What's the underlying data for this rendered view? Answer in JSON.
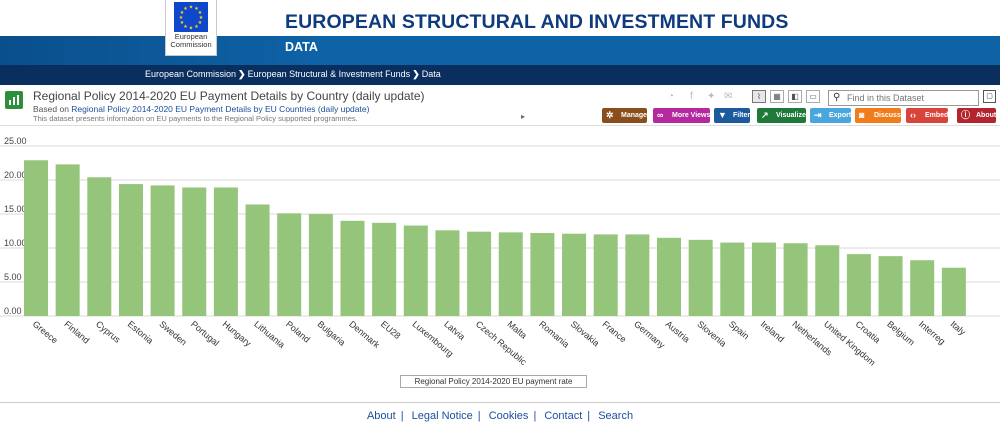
{
  "header": {
    "logo_text_line1": "European",
    "logo_text_line2": "Commission",
    "site_title": "EUROPEAN STRUCTURAL AND INVESTMENT FUNDS",
    "site_subtitle": "DATA",
    "breadcrumbs": [
      "European Commission",
      "European Structural & Investment Funds",
      "Data"
    ]
  },
  "dataset": {
    "title": "Regional Policy 2014-2020 EU Payment Details by Country (daily update)",
    "based_prefix": "Based on",
    "based_link": "Regional Policy 2014-2020 EU Payment Details by EU Countries (daily update)",
    "description": "This dataset presents information on EU payments to the Regional Policy supported programmes.",
    "search_placeholder": "Find in this Dataset",
    "buttons": [
      {
        "label": "Manage",
        "icon": "gear-icon",
        "color": "#8a4e1c"
      },
      {
        "label": "More Views",
        "icon": "binoculars-icon",
        "color": "#b5299f"
      },
      {
        "label": "Filter",
        "icon": "funnel-icon",
        "color": "#1b5a9c"
      },
      {
        "label": "Visualize",
        "icon": "chart-icon",
        "color": "#1f7a3a"
      },
      {
        "label": "Export",
        "icon": "export-icon",
        "color": "#4aa6dc"
      },
      {
        "label": "Discuss",
        "icon": "speech-icon",
        "color": "#f07d1b"
      },
      {
        "label": "Embed",
        "icon": "code-icon",
        "color": "#d9443a"
      },
      {
        "label": "About",
        "icon": "info-icon",
        "color": "#b3242e"
      }
    ]
  },
  "chart_data": {
    "type": "bar",
    "title": "",
    "xlabel": "",
    "ylabel": "",
    "ylim": [
      0,
      25
    ],
    "yticks": [
      "0.00",
      "5.00",
      "10.00",
      "15.00",
      "20.00",
      "25.00"
    ],
    "grid": "horizontal",
    "legend_position": "bottom-center",
    "bar_color": "#95c47b",
    "categories": [
      "Greece",
      "Finland",
      "Cyprus",
      "Estonia",
      "Sweden",
      "Portugal",
      "Hungary",
      "Lithuania",
      "Poland",
      "Bulgaria",
      "Denmark",
      "EU28",
      "Luxembourg",
      "Latvia",
      "Czech Republic",
      "Malta",
      "Romania",
      "Slovakia",
      "France",
      "Germany",
      "Austria",
      "Slovenia",
      "Spain",
      "Ireland",
      "Netherlands",
      "United Kingdom",
      "Croatia",
      "Belgium",
      "Interreg",
      "Italy"
    ],
    "series": [
      {
        "name": "Regional Policy 2014-2020 EU payment rate",
        "values": [
          22.9,
          22.3,
          20.4,
          19.4,
          19.2,
          18.9,
          18.9,
          16.4,
          15.1,
          15.0,
          14.0,
          13.7,
          13.3,
          12.6,
          12.4,
          12.3,
          12.2,
          12.1,
          12.0,
          12.0,
          11.5,
          11.2,
          10.8,
          10.8,
          10.7,
          10.4,
          9.1,
          8.8,
          8.2,
          7.1
        ]
      }
    ]
  },
  "footer": {
    "links": [
      "About",
      "Legal Notice",
      "Cookies",
      "Contact",
      "Search"
    ]
  }
}
